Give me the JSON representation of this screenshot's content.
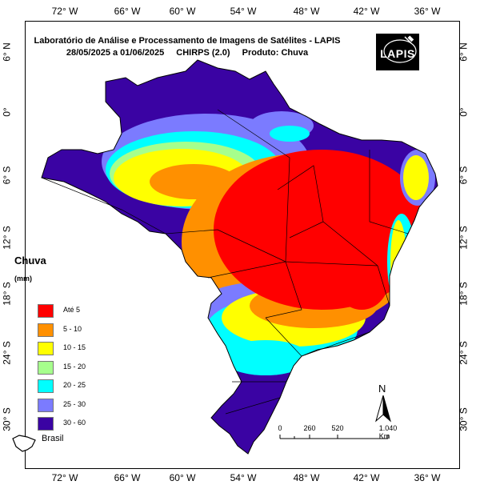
{
  "title": {
    "line1": "Laboratório de Análise e Processamento de Imagens de Satélites - LAPIS",
    "date_range": "28/05/2025  a  01/06/2025",
    "dataset": "CHIRPS (2.0)",
    "product": "Produto: Chuva"
  },
  "logo": {
    "text": "LAPIS"
  },
  "axes": {
    "longitude_ticks": [
      "72° W",
      "66° W",
      "60° W",
      "54° W",
      "48° W",
      "42° W",
      "36° W"
    ],
    "latitude_ticks": [
      "6° N",
      "0°",
      "6° S",
      "12° S",
      "18° S",
      "24° S",
      "30° S"
    ]
  },
  "legend": {
    "title": "Chuva",
    "unit": "(mm)",
    "items": [
      {
        "label": "Até 5",
        "color": "#ff0000"
      },
      {
        "label": "5 - 10",
        "color": "#ff9000"
      },
      {
        "label": "10 - 15",
        "color": "#ffff00"
      },
      {
        "label": "15 - 20",
        "color": "#a6ff8c"
      },
      {
        "label": "20 - 25",
        "color": "#00ffff"
      },
      {
        "label": "25 - 30",
        "color": "#7b7bff"
      },
      {
        "label": "30 - 60",
        "color": "#3a03a3"
      }
    ]
  },
  "boundary_key": {
    "label": "Brasil"
  },
  "scale_bar": {
    "labels": [
      "0",
      "260",
      "520",
      "1.040 Km"
    ]
  },
  "north_arrow": {
    "label": "N"
  }
}
